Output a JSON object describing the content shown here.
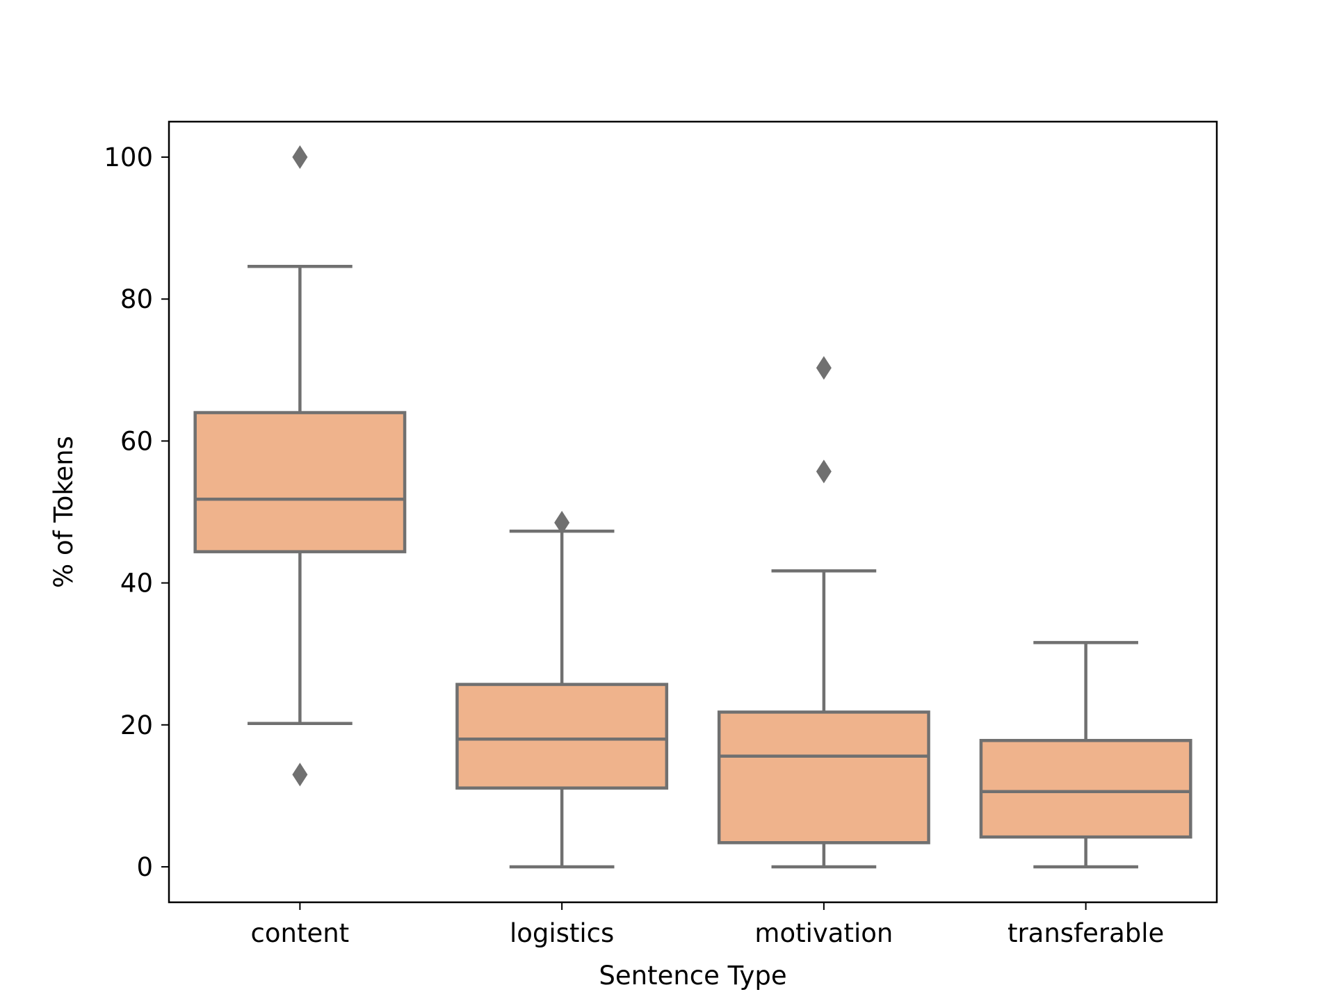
{
  "chart_data": {
    "type": "boxplot",
    "title": "",
    "xlabel": "Sentence Type",
    "ylabel": "% of Tokens",
    "ylim": [
      -5,
      105
    ],
    "yticks": [
      "0",
      "20",
      "40",
      "60",
      "80",
      "100"
    ],
    "categories": [
      "content",
      "logistics",
      "motivation",
      "transferable"
    ],
    "boxes": [
      {
        "category": "content",
        "whisker_low": 20.2,
        "q1": 44.4,
        "median": 51.8,
        "q3": 64.0,
        "whisker_high": 84.6,
        "outliers": [
          100.0,
          13.0
        ]
      },
      {
        "category": "logistics",
        "whisker_low": 0.0,
        "q1": 11.1,
        "median": 18.0,
        "q3": 25.7,
        "whisker_high": 47.3,
        "outliers": [
          48.5
        ]
      },
      {
        "category": "motivation",
        "whisker_low": 0.0,
        "q1": 3.4,
        "median": 15.6,
        "q3": 21.8,
        "whisker_high": 41.7,
        "outliers": [
          70.3,
          55.7
        ]
      },
      {
        "category": "transferable",
        "whisker_low": 0.0,
        "q1": 4.2,
        "median": 10.6,
        "q3": 17.8,
        "whisker_high": 31.6,
        "outliers": []
      }
    ],
    "colors": {
      "box_fill": "#efb38c",
      "line": "#707070",
      "frame": "#000000"
    },
    "grid": false,
    "legend": "none"
  }
}
